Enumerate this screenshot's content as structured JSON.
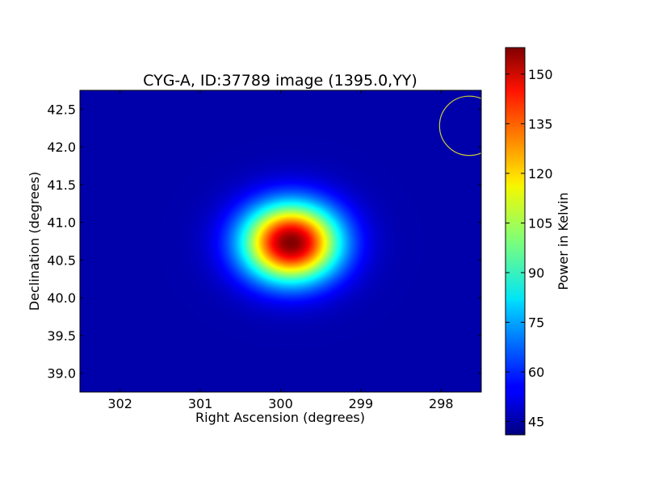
{
  "chart_data": {
    "type": "heatmap",
    "title": "CYG-A, ID:37789 image (1395.0,YY)",
    "xlabel": "Right Ascension (degrees)",
    "ylabel": "Declination (degrees)",
    "xlim": [
      302.5,
      297.5
    ],
    "ylim": [
      38.75,
      42.75
    ],
    "x_ticks": [
      302,
      301,
      300,
      299,
      298
    ],
    "x_tick_labels": [
      "302",
      "301",
      "300",
      "299",
      "298"
    ],
    "y_ticks": [
      39.0,
      39.5,
      40.0,
      40.5,
      41.0,
      41.5,
      42.0,
      42.5
    ],
    "y_tick_labels": [
      "39.0",
      "39.5",
      "40.0",
      "40.5",
      "41.0",
      "41.5",
      "42.0",
      "42.5"
    ],
    "colormap": "jet",
    "grid": false,
    "colorbar": {
      "label": "Power in Kelvin",
      "range": [
        41,
        158
      ],
      "ticks": [
        45,
        60,
        75,
        90,
        105,
        120,
        135,
        150
      ],
      "tick_labels": [
        "45",
        "60",
        "75",
        "90",
        "105",
        "120",
        "135",
        "150"
      ]
    },
    "background_level": 46,
    "source": {
      "ra": 299.87,
      "dec": 40.73,
      "peak_value": 158,
      "sigma_ra_deg": 0.42,
      "sigma_dec_deg": 0.36
    },
    "beam_circle": {
      "ra": 297.65,
      "dec": 42.28,
      "radius_deg": 0.37,
      "color": "#cccc33"
    }
  }
}
